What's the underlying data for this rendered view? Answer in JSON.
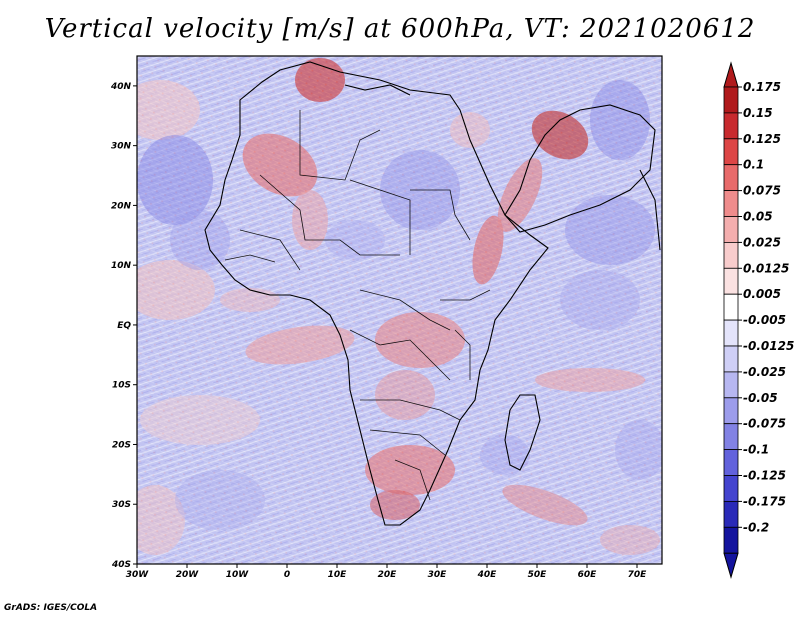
{
  "title": "Vertical velocity [m/s] at 600hPa, VT: 2021020612",
  "credit": "GrADS: IGES/COLA",
  "map": {
    "lon_range": [
      -30,
      75
    ],
    "lat_range": [
      -40,
      45
    ],
    "x_ticks": [
      "30W",
      "20W",
      "10W",
      "0",
      "10E",
      "20E",
      "30E",
      "40E",
      "50E",
      "60E",
      "70E"
    ],
    "y_ticks": [
      "40N",
      "30N",
      "20N",
      "10N",
      "EQ",
      "10S",
      "20S",
      "30S",
      "40S"
    ]
  },
  "colorbar": {
    "labels": [
      "0.175",
      "0.15",
      "0.125",
      "0.1",
      "0.075",
      "0.05",
      "0.025",
      "0.0125",
      "0.005",
      "-0.005",
      "-0.0125",
      "-0.025",
      "-0.05",
      "-0.075",
      "-0.1",
      "-0.125",
      "-0.175",
      "-0.2"
    ],
    "colors": [
      "#b01a1c",
      "#c82a2e",
      "#dd4646",
      "#e86a6a",
      "#ef8c8c",
      "#f4aeae",
      "#f8cccc",
      "#fbe2e2",
      "#ffffff",
      "#e4e4fb",
      "#cfcff6",
      "#b7b7f1",
      "#9c9ceb",
      "#8282e4",
      "#6262dc",
      "#4444cf",
      "#2a2ab8",
      "#14149e"
    ],
    "top_color": "#b01a1c",
    "bottom_color": "#14149e"
  },
  "colors": {
    "updraft_region": "#e06060",
    "downdraft_region": "#7070e0",
    "background_field": "#c8c8f4"
  }
}
